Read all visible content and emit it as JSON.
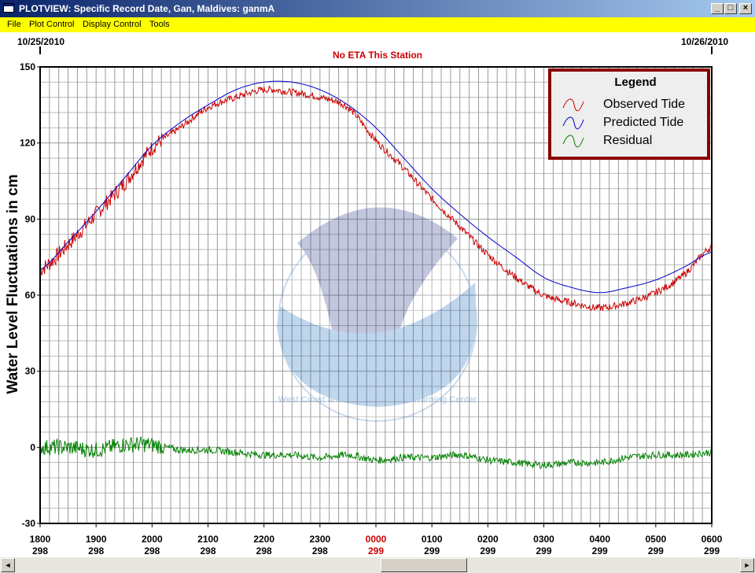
{
  "window": {
    "title": "PLOTVIEW: Specific Record Date, Gan, Maldives: ganmA",
    "buttons": [
      "_",
      "□",
      "×"
    ]
  },
  "menu": [
    "File",
    "Plot Control",
    "Display Control",
    "Tools"
  ],
  "dates": {
    "left": "10/25/2010",
    "right": "10/26/2010"
  },
  "eta_text": "No ETA This Station",
  "watermark_text": "West Coast and Alaska Tsunami Warning Center",
  "colors": {
    "observed": "#cc0000",
    "predicted": "#0000cc",
    "residual": "#008000",
    "today": "#cc0000",
    "menu": "#ffff00"
  },
  "chart_data": {
    "type": "line",
    "ylabel": "Water Level Fluctuations in cm",
    "ylim": [
      -30,
      150
    ],
    "yticks": [
      -30,
      0,
      30,
      60,
      90,
      120,
      150
    ],
    "xlim": [
      0,
      12
    ],
    "x_ticks": [
      {
        "time": "1800",
        "day": "298"
      },
      {
        "time": "1900",
        "day": "298"
      },
      {
        "time": "2000",
        "day": "298"
      },
      {
        "time": "2100",
        "day": "298"
      },
      {
        "time": "2200",
        "day": "298"
      },
      {
        "time": "2300",
        "day": "298"
      },
      {
        "time": "0000",
        "day": "299",
        "highlight": true
      },
      {
        "time": "0100",
        "day": "299"
      },
      {
        "time": "0200",
        "day": "299"
      },
      {
        "time": "0300",
        "day": "299"
      },
      {
        "time": "0400",
        "day": "299"
      },
      {
        "time": "0500",
        "day": "299"
      },
      {
        "time": "0600",
        "day": "299"
      }
    ],
    "legend": {
      "title": "Legend",
      "position": "top-right"
    },
    "series": [
      {
        "name": "Observed Tide",
        "color": "#cc0000",
        "x": [
          0,
          0.5,
          1,
          1.5,
          2,
          2.5,
          3,
          3.5,
          4,
          4.5,
          5,
          5.5,
          6,
          6.5,
          7,
          7.5,
          8,
          8.5,
          9,
          9.5,
          10,
          10.5,
          11,
          11.5,
          12
        ],
        "y": [
          70,
          80,
          92,
          104,
          118,
          126,
          134,
          138,
          141,
          140,
          138,
          134,
          121,
          110,
          98,
          87,
          76,
          67,
          60,
          57,
          55,
          57,
          61,
          68,
          79
        ]
      },
      {
        "name": "Predicted Tide",
        "color": "#0000cc",
        "x": [
          0,
          0.5,
          1,
          1.5,
          2,
          2.5,
          3,
          3.5,
          4,
          4.5,
          5,
          5.5,
          6,
          6.5,
          7,
          7.5,
          8,
          8.5,
          9,
          9.5,
          10,
          10.5,
          11,
          11.5,
          12
        ],
        "y": [
          70,
          81,
          93,
          106,
          119,
          128,
          135,
          141,
          144,
          144,
          141,
          135,
          126,
          114,
          102,
          92,
          83,
          75,
          67,
          63,
          61,
          63,
          66,
          71,
          77
        ]
      },
      {
        "name": "Residual",
        "color": "#008000",
        "x": [
          0,
          0.5,
          1,
          1.5,
          2,
          2.5,
          3,
          3.5,
          4,
          4.5,
          5,
          5.5,
          6,
          6.5,
          7,
          7.5,
          8,
          8.5,
          9,
          9.5,
          10,
          10.5,
          11,
          11.5,
          12
        ],
        "y": [
          0,
          0,
          -1,
          1,
          1,
          -1,
          -1,
          -2,
          -3,
          -3,
          -4,
          -3,
          -5,
          -4,
          -4,
          -3,
          -5,
          -6,
          -7,
          -6,
          -6,
          -4,
          -3,
          -3,
          -2
        ]
      }
    ]
  }
}
